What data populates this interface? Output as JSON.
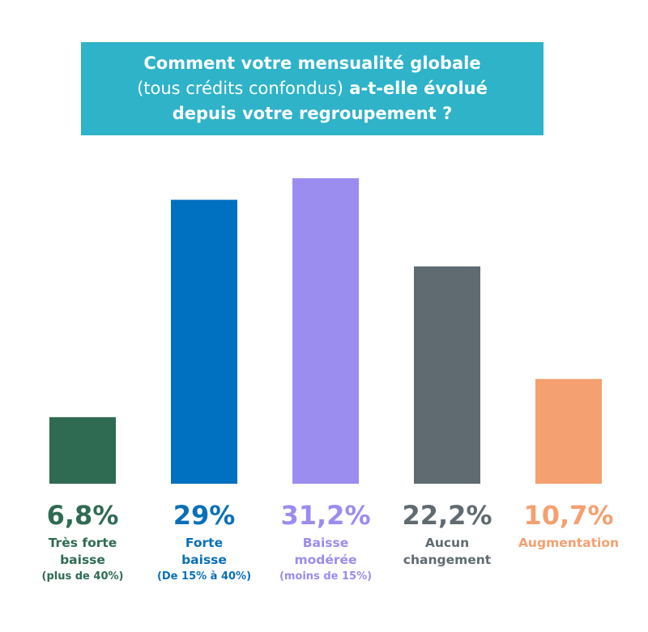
{
  "title": {
    "line1": "Comment votre mensualité globale",
    "line2_light": "(tous crédits confondus)",
    "line2_bold": " a-t-elle évolué",
    "line3": "depuis votre regroupement ?"
  },
  "chart_data": {
    "type": "bar",
    "title": "Comment votre mensualité globale (tous crédits confondus) a-t-elle évolué depuis votre regroupement ?",
    "categories": [
      "Très forte baisse",
      "Forte baisse",
      "Baisse modérée",
      "Aucun changement",
      "Augmentation"
    ],
    "values": [
      6.8,
      29,
      31.2,
      22.2,
      10.7
    ],
    "value_labels": [
      "6,8%",
      "29%",
      "31,2%",
      "22,2%",
      "10,7%"
    ],
    "label_lines": [
      [
        "Très forte",
        "baisse"
      ],
      [
        "Forte",
        "baisse"
      ],
      [
        "Baisse",
        "modérée"
      ],
      [
        "Aucun",
        "changement"
      ],
      [
        "Augmentation"
      ]
    ],
    "sublabels": [
      "(plus de 40%)",
      "(De 15% à 40%)",
      "(moins de 15%)",
      "",
      ""
    ],
    "colors": [
      "#2f6b53",
      "#0070c0",
      "#9b8cf0",
      "#5f6b71",
      "#f4a070"
    ],
    "text_colors": [
      "#2f6b53",
      "#0a6fb8",
      "#9b8cf0",
      "#5f6b71",
      "#f4a070"
    ],
    "xlabel": "",
    "ylabel": "",
    "ylim": [
      0,
      31.2
    ],
    "grid": false,
    "legend": "none"
  }
}
